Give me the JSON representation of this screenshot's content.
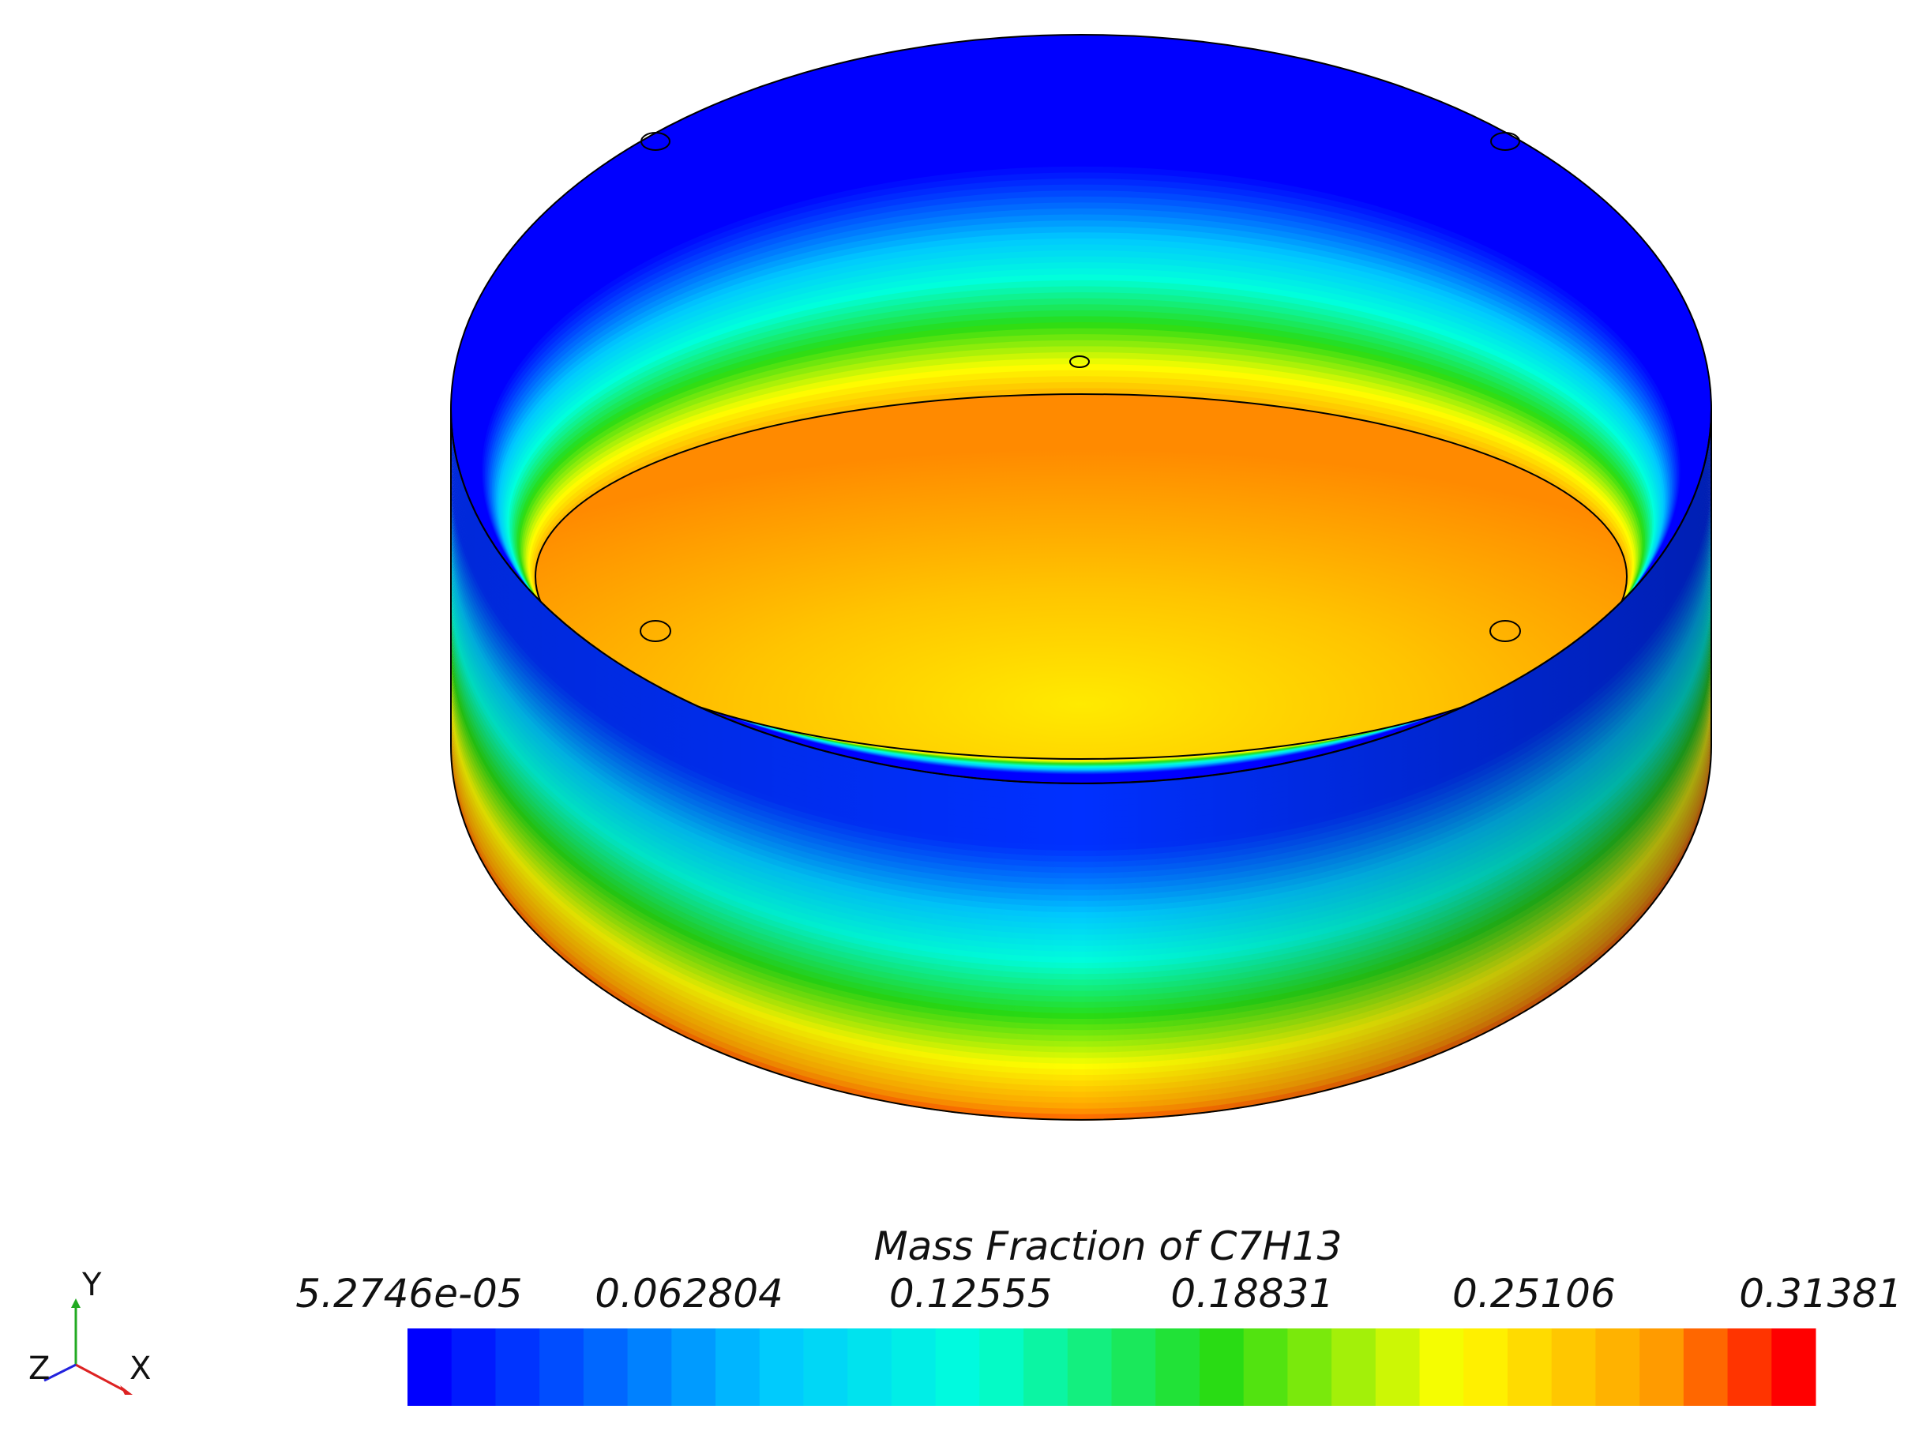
{
  "colorbar": {
    "title": "Mass Fraction of C7H13",
    "ticks": [
      "5.2746e-05",
      "0.062804",
      "0.12555",
      "0.18831",
      "0.25106",
      "0.31381"
    ]
  },
  "triad": {
    "y": "Y",
    "z": "Z",
    "x": "X"
  }
}
